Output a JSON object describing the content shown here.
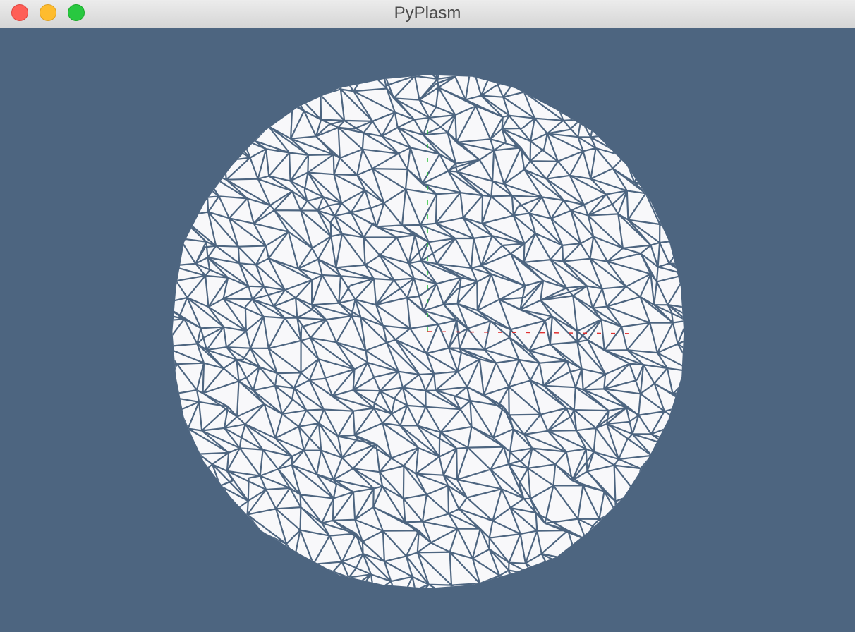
{
  "window": {
    "title": "PyPlasm"
  }
}
